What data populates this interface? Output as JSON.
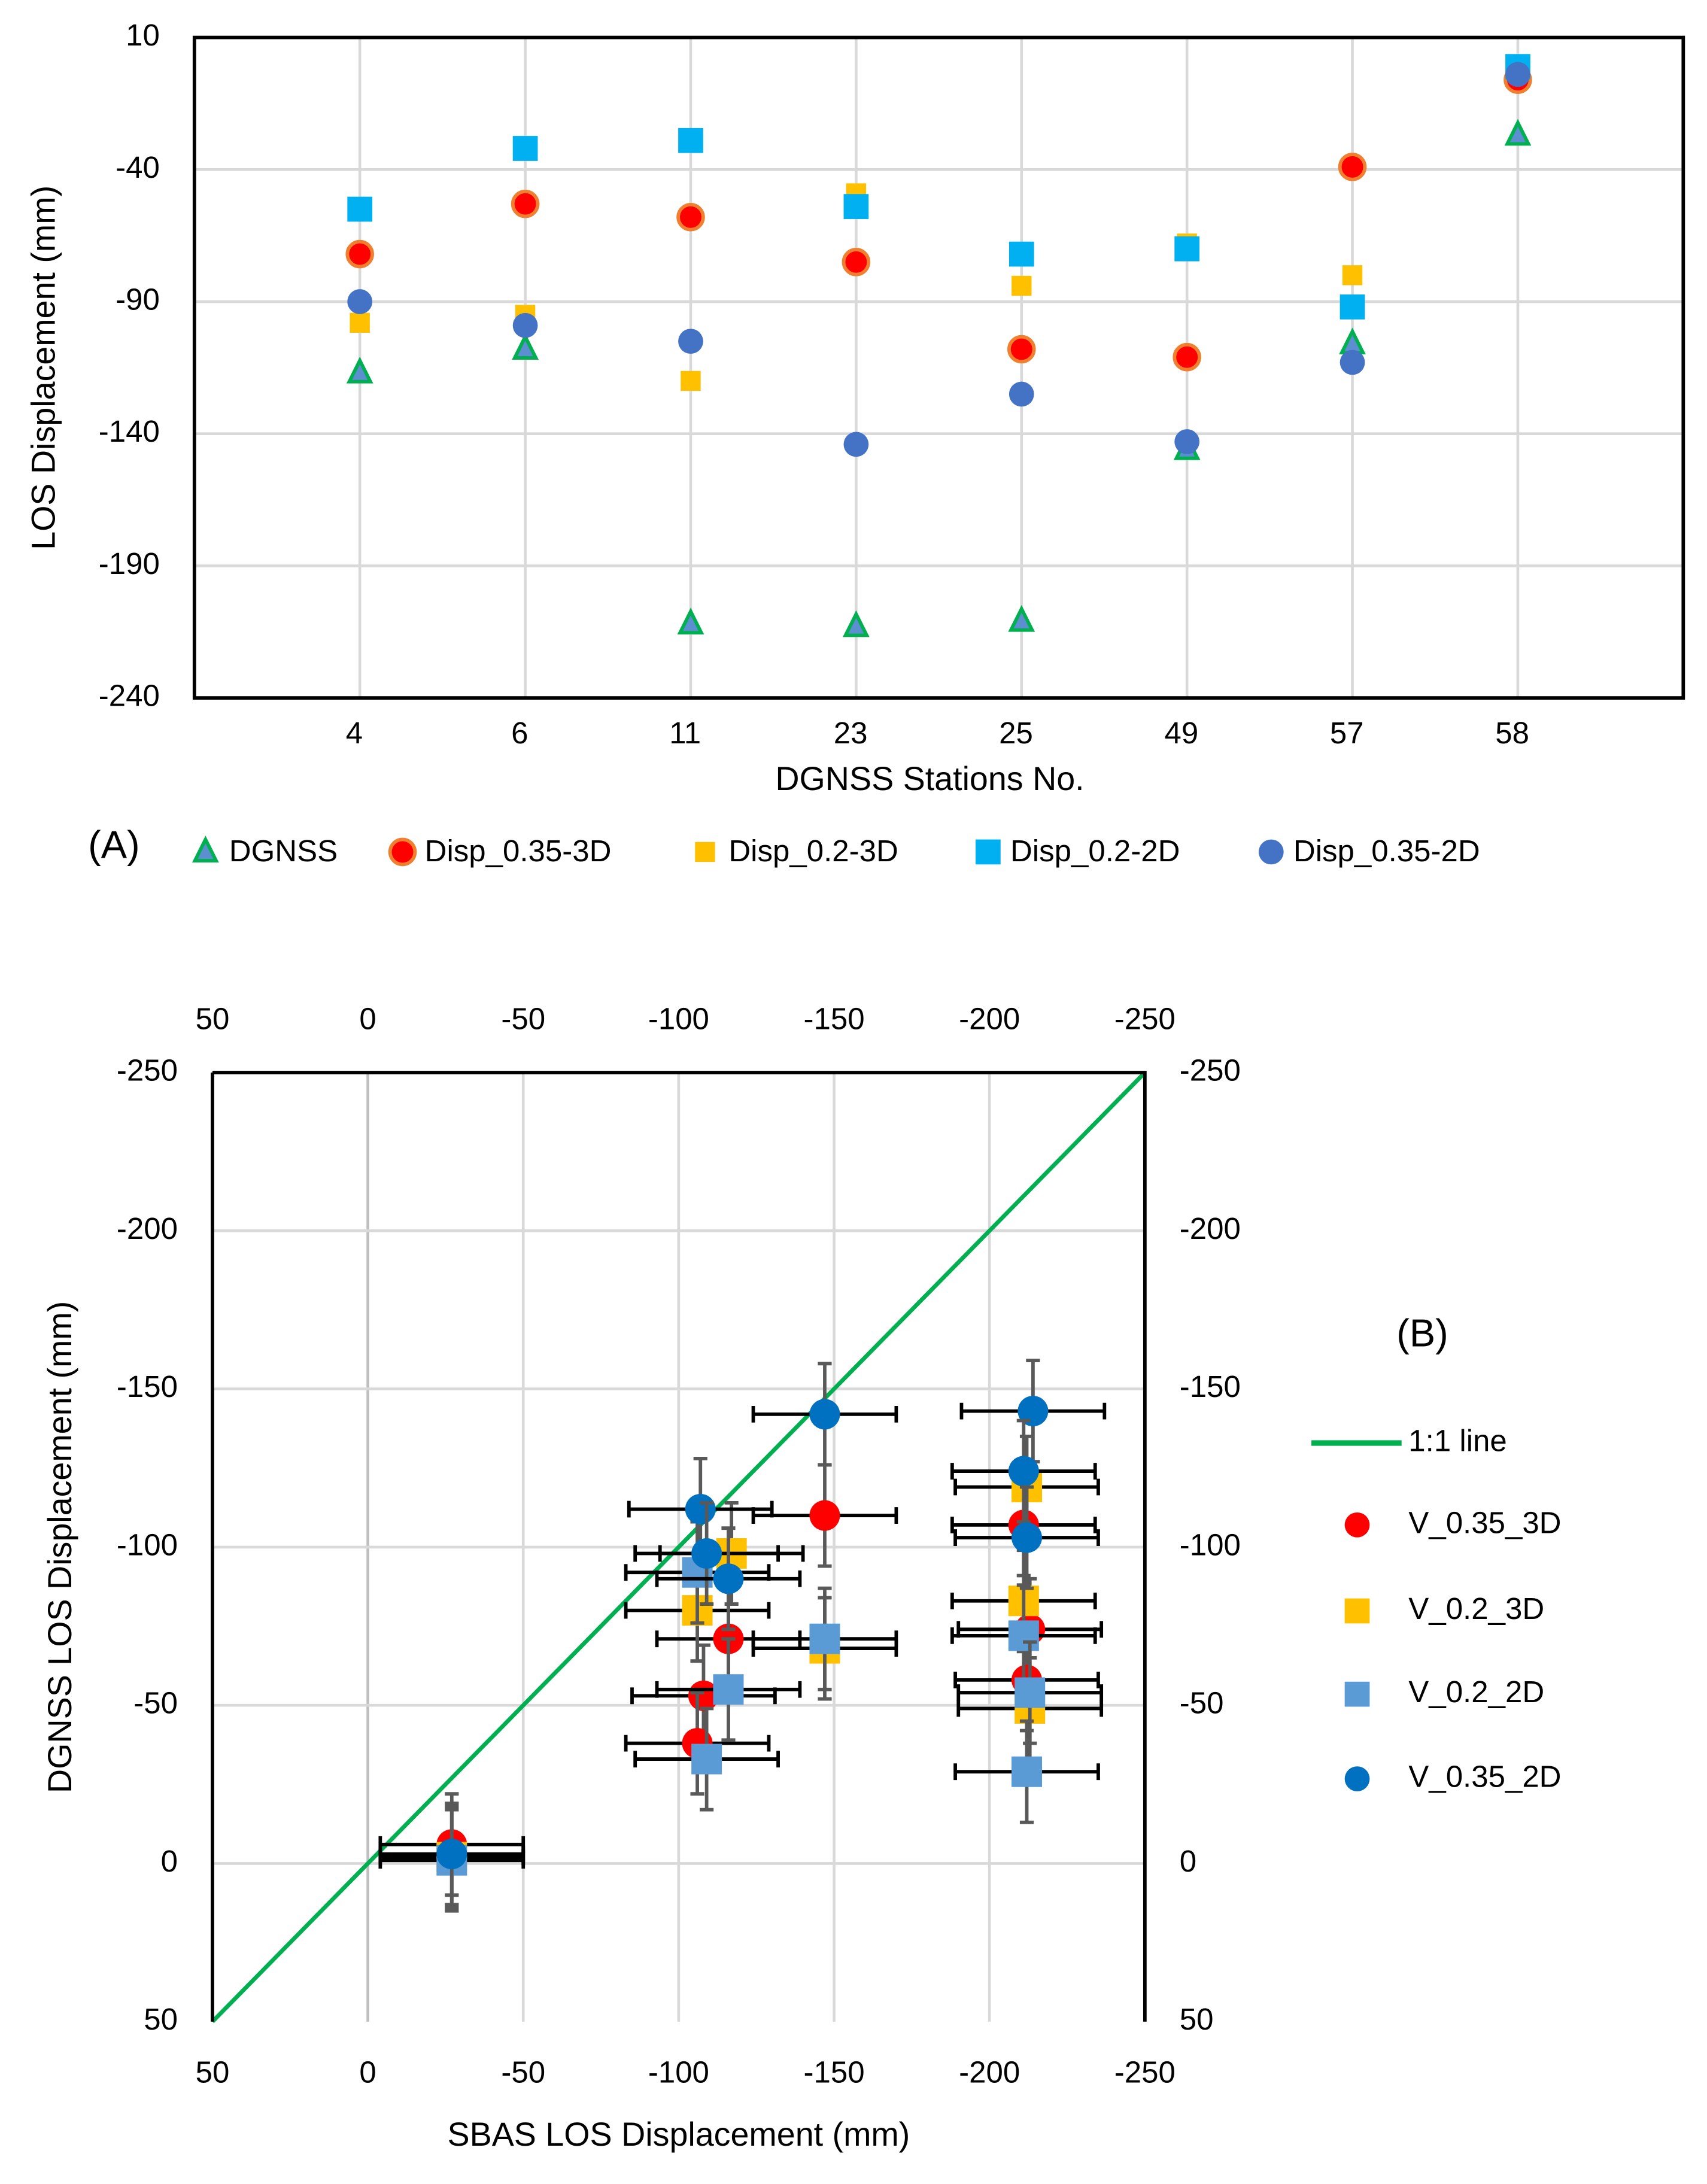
{
  "colors": {
    "dgnss_fill": "#5b8fd0",
    "dgnss_stroke": "#00b050",
    "disp035_3d": "#ff0000",
    "disp035_3d_edge": "#f08030",
    "disp02_3d": "#ffc000",
    "disp02_2d": "#00b0f0",
    "disp035_2d": "#4472c4",
    "line11": "#00b050",
    "v035_3d": "#ff0000",
    "v02_3d": "#ffc000",
    "v02_2d": "#5b9bd5",
    "v035_2d": "#0070c0",
    "grid": "#d9d9d9"
  },
  "chart_data": [
    {
      "type": "scatter",
      "panel_label": "(A)",
      "xlabel": "DGNSS Stations No.",
      "ylabel": "LOS Displacement (mm)",
      "categories": [
        "4",
        "6",
        "11",
        "23",
        "25",
        "49",
        "57",
        "58"
      ],
      "ylim": [
        -240,
        10
      ],
      "yticks": [
        "10",
        "-40",
        "-90",
        "-140",
        "-190",
        "-240"
      ],
      "grid": true,
      "legend_position": "bottom",
      "series": [
        {
          "name": "DGNSS",
          "marker": "triangle",
          "values": [
            -117,
            -108,
            -212,
            -213,
            -211,
            -146,
            -106,
            -27
          ]
        },
        {
          "name": "Disp_0.35-3D",
          "marker": "circle-ring",
          "values": [
            -72,
            -53,
            -58,
            -75,
            -108,
            -111,
            -39,
            -6
          ]
        },
        {
          "name": "Disp_0.2-3D",
          "marker": "square-small",
          "values": [
            -98,
            -95,
            -120,
            -49,
            -84,
            -68,
            -80,
            -3
          ]
        },
        {
          "name": "Disp_0.2-2D",
          "marker": "square",
          "values": [
            -55,
            -32,
            -29,
            -54,
            -72,
            -70,
            -92,
            -1
          ]
        },
        {
          "name": "Disp_0.35-2D",
          "marker": "circle",
          "values": [
            -90,
            -99,
            -105,
            -144,
            -125,
            -143,
            -113,
            -4
          ]
        }
      ]
    },
    {
      "type": "scatter",
      "panel_label": "(B)",
      "xlabel": "SBAS LOS Displacement (mm)",
      "ylabel": "DGNSS LOS Displacement (mm)",
      "xlim": [
        50,
        -250
      ],
      "ylim": [
        50,
        -250
      ],
      "xticks": [
        "50",
        "0",
        "-50",
        "-100",
        "-150",
        "-200",
        "-250"
      ],
      "yticks": [
        "-250",
        "-200",
        "-150",
        "-100",
        "-50",
        "0",
        "50"
      ],
      "grid": true,
      "legend_position": "right",
      "x_error": 23,
      "y_error": 16,
      "line": {
        "name": "1:1 line",
        "from": [
          50,
          50
        ],
        "to": [
          -250,
          -250
        ]
      },
      "series": [
        {
          "name": "V_0.35_3D",
          "marker": "circle",
          "points": [
            [
              -27,
              -6
            ],
            [
              -147,
              -110
            ],
            [
              -116,
              -71
            ],
            [
              -108,
              -53
            ],
            [
              -106,
              -38
            ],
            [
              -211,
              -107
            ],
            [
              -213,
              -74
            ],
            [
              -212,
              -58
            ]
          ]
        },
        {
          "name": "V_0.2_3D",
          "marker": "square",
          "points": [
            [
              -27,
              -2
            ],
            [
              -117,
              -98
            ],
            [
              -106,
              -80
            ],
            [
              -147,
              -68
            ],
            [
              -212,
              -119
            ],
            [
              -211,
              -83
            ],
            [
              -213,
              -49
            ]
          ]
        },
        {
          "name": "V_0.2_2D",
          "marker": "square",
          "points": [
            [
              -27,
              -1
            ],
            [
              -106,
              -92
            ],
            [
              -116,
              -55
            ],
            [
              -109,
              -33
            ],
            [
              -147,
              -71
            ],
            [
              -211,
              -72
            ],
            [
              -213,
              -54
            ],
            [
              -212,
              -29
            ]
          ]
        },
        {
          "name": "V_0.35_2D",
          "marker": "circle",
          "points": [
            [
              -27,
              -3
            ],
            [
              -107,
              -112
            ],
            [
              -109,
              -98
            ],
            [
              -116,
              -90
            ],
            [
              -147,
              -142
            ],
            [
              -214,
              -143
            ],
            [
              -211,
              -124
            ],
            [
              -212,
              -103
            ]
          ]
        }
      ]
    }
  ]
}
